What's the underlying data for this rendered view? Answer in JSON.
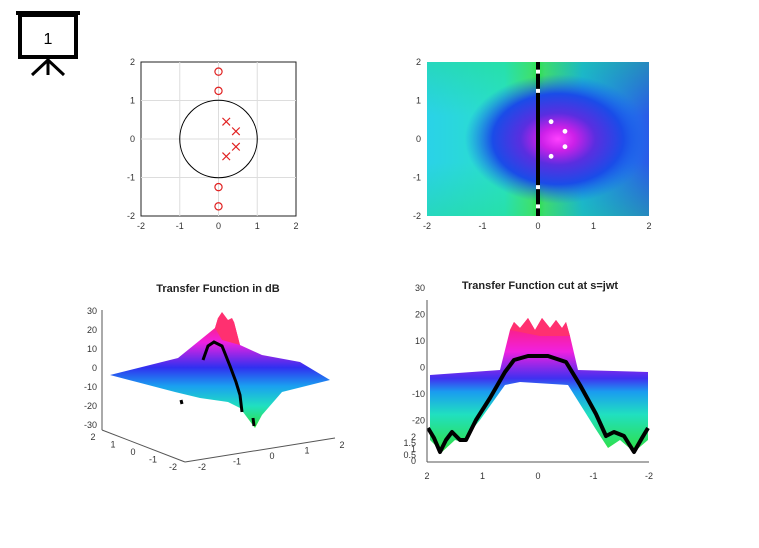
{
  "slide_badge": {
    "number": "1",
    "icon": "presentation-board-icon"
  },
  "colors": {
    "pole": "#e02020",
    "zero": "#e02020",
    "unit_circle": "#000000",
    "cut_curve": "#000000"
  },
  "chart_data": [
    {
      "type": "scatter",
      "subtype": "pole-zero-map",
      "title": "",
      "xlim": [
        -2,
        2
      ],
      "ylim": [
        -2,
        2
      ],
      "x_ticks": [
        "-2",
        "-1",
        "0",
        "1",
        "2"
      ],
      "y_ticks": [
        "2",
        "1",
        "0",
        "-1",
        "-2"
      ],
      "grid": true,
      "unit_circle": true,
      "zeros": [
        [
          0,
          1.75
        ],
        [
          0,
          1.25
        ],
        [
          0,
          -1.25
        ],
        [
          0,
          -1.75
        ]
      ],
      "poles": [
        [
          0.2,
          0.45
        ],
        [
          0.45,
          0.2
        ],
        [
          0.45,
          -0.2
        ],
        [
          0.2,
          -0.45
        ]
      ]
    },
    {
      "type": "heatmap",
      "title": "",
      "xlim": [
        -2,
        2
      ],
      "ylim": [
        -2,
        2
      ],
      "x_ticks": [
        "-2",
        "-1",
        "0",
        "1",
        "2"
      ],
      "y_ticks": [
        "2",
        "1",
        "0",
        "-1",
        "-2"
      ],
      "jw_axis_line": true
    },
    {
      "type": "surface",
      "title": "Transfer Function in dB",
      "z_ticks": [
        "30",
        "20",
        "10",
        "0",
        "-10",
        "-20",
        "-30"
      ],
      "x_ticks": [
        "-2",
        "-1",
        "0",
        "1",
        "2"
      ],
      "y_ticks": [
        "2",
        "1",
        "0",
        "-1",
        "-2"
      ]
    },
    {
      "type": "surface",
      "title": "Transfer Function cut at s=jwt",
      "z_ticks": [
        "30",
        "20",
        "10",
        "0",
        "-10",
        "-20"
      ],
      "depth_ticks": [
        "2",
        "1.5",
        "1",
        "0.5",
        "0"
      ],
      "x_ticks": [
        "2",
        "1",
        "0",
        "-1",
        "-2"
      ]
    }
  ]
}
